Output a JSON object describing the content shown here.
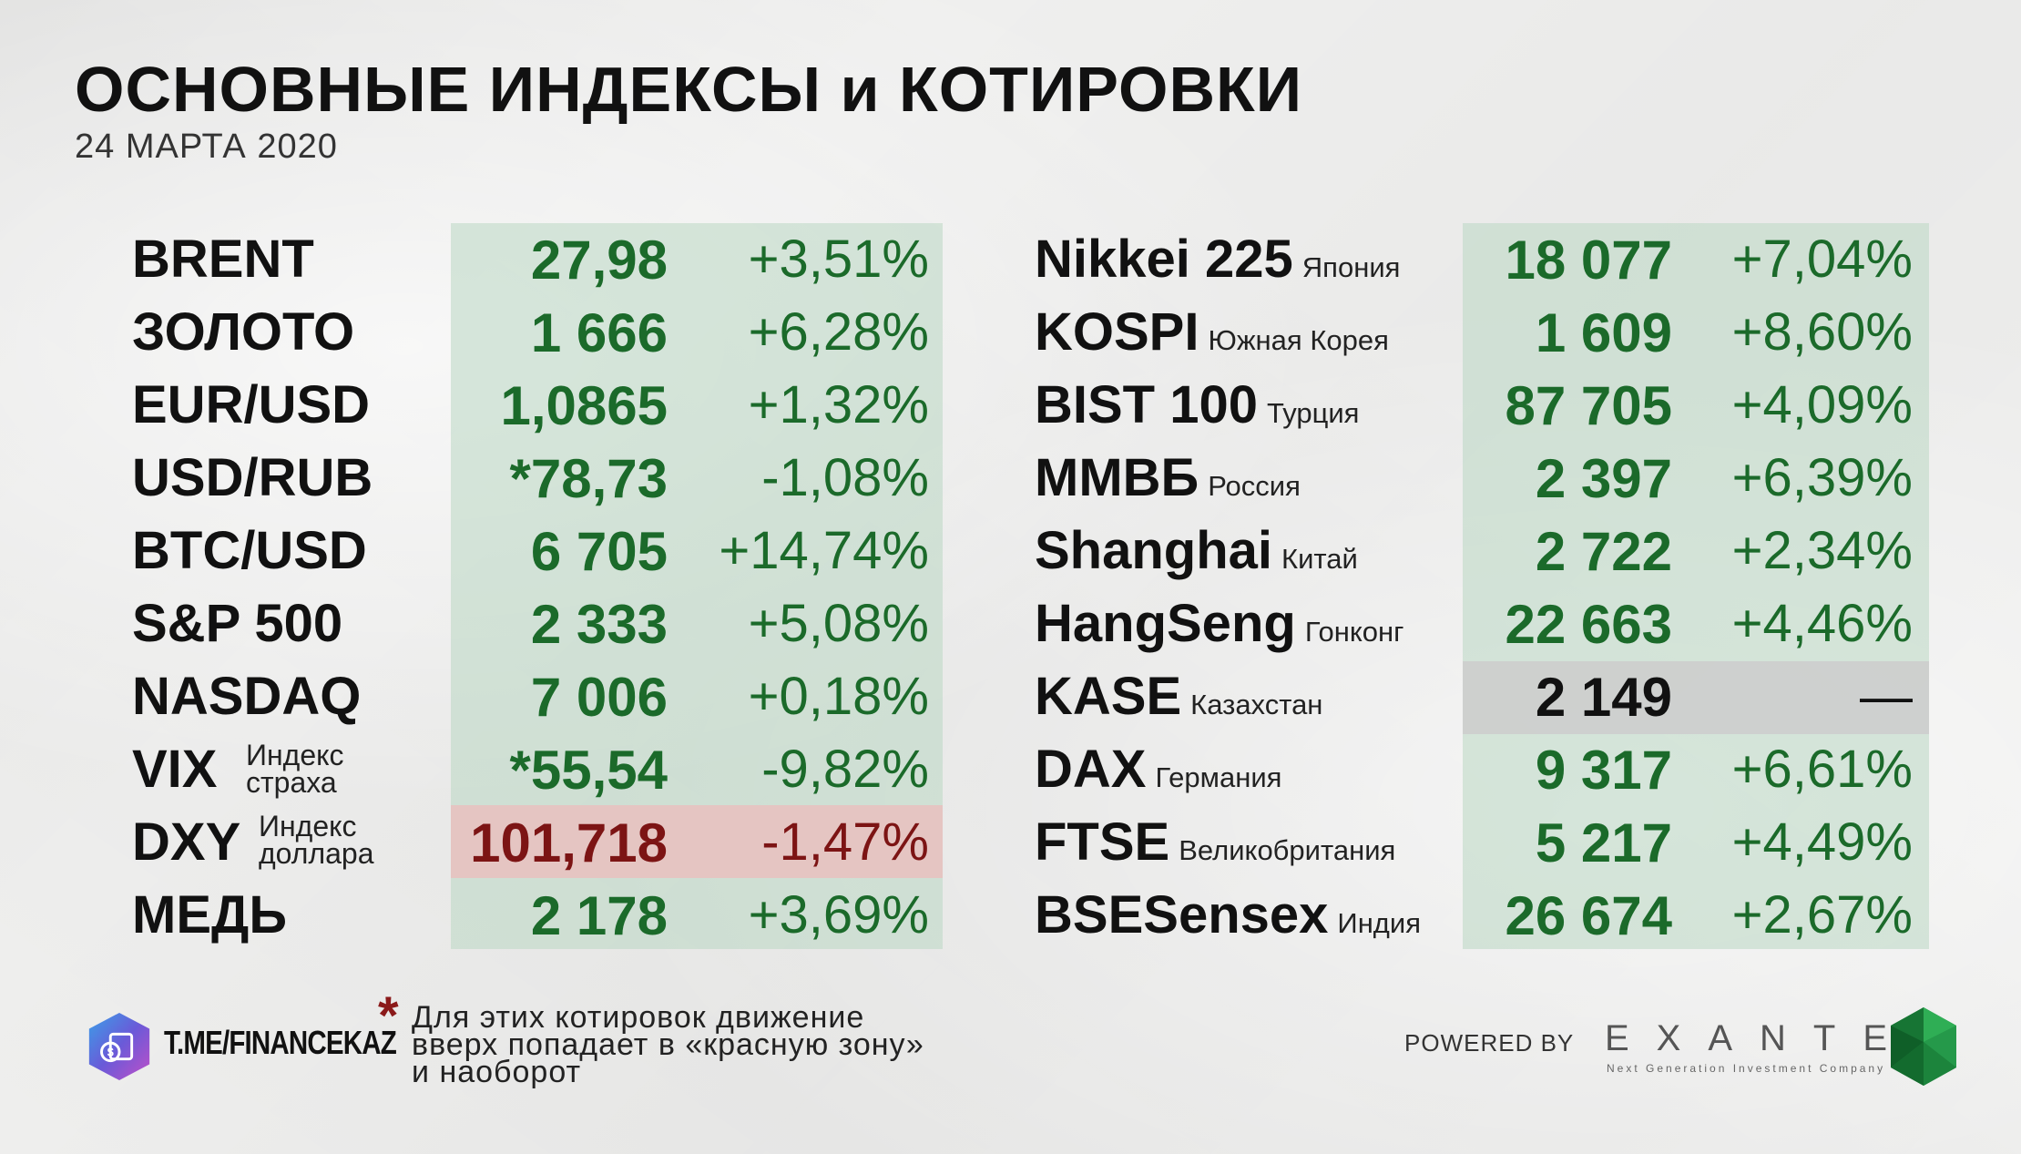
{
  "header": {
    "title": "ОСНОВНЫЕ ИНДЕКСЫ и КОТИРОВКИ",
    "date": "24 МАРТА 2020"
  },
  "left_table": [
    {
      "name": "BRENT",
      "value": "27,98",
      "change": "+3,51%"
    },
    {
      "name": "ЗОЛОТО",
      "value": "1 666",
      "change": "+6,28%"
    },
    {
      "name": "EUR/USD",
      "value": "1,0865",
      "change": "+1,32%"
    },
    {
      "name": "USD/RUB",
      "value": "*78,73",
      "change": "-1,08%"
    },
    {
      "name": "BTC/USD",
      "value": "6 705",
      "change": "+14,74%"
    },
    {
      "name": "S&P 500",
      "value": "2 333",
      "change": "+5,08%"
    },
    {
      "name": "NASDAQ",
      "value": "7 006",
      "change": "+0,18%"
    },
    {
      "name": "VIX",
      "sub_line1": "Индекс",
      "sub_line2": "страха",
      "value": "*55,54",
      "change": "-9,82%"
    },
    {
      "name": "DXY",
      "sub_line1": "Индекс",
      "sub_line2": "доллара",
      "value": "101,718",
      "change": "-1,47%",
      "status": "negative"
    },
    {
      "name": "МЕДЬ",
      "value": "2 178",
      "change": "+3,69%"
    }
  ],
  "right_table": [
    {
      "name": "Nikkei 225",
      "sub": "Япония",
      "value": "18 077",
      "change": "+7,04%"
    },
    {
      "name": "KOSPI",
      "sub": "Южная Корея",
      "value": "1 609",
      "change": "+8,60%"
    },
    {
      "name": "BIST 100",
      "sub": "Турция",
      "value": "87 705",
      "change": "+4,09%"
    },
    {
      "name": "ММВБ",
      "sub": "Россия",
      "value": "2 397",
      "change": "+6,39%"
    },
    {
      "name": "Shanghai",
      "sub": "Китай",
      "value": "2 722",
      "change": "+2,34%"
    },
    {
      "name": "HangSeng",
      "sub": "Гонконг",
      "value": "22 663",
      "change": "+4,46%"
    },
    {
      "name": "KASE",
      "sub": "Казахстан",
      "value": "2 149",
      "change": "—",
      "status": "neutral"
    },
    {
      "name": "DAX",
      "sub": "Германия",
      "value": "9 317",
      "change": "+6,61%"
    },
    {
      "name": "FTSE",
      "sub": "Великобритания",
      "value": "5 217",
      "change": "+4,49%"
    },
    {
      "name": "BSESensex",
      "sub": "Индия",
      "value": "26 674",
      "change": "+2,67%"
    }
  ],
  "footer": {
    "channel": "T.ME/FINANCEKAZ",
    "asterisk": "*",
    "note_line1": "Для этих котировок движение",
    "note_line2": "вверх попадает в «красную зону»",
    "note_line3": "и наоборот",
    "powered_by": "POWERED BY",
    "brand": "EXANTE",
    "brand_tagline": "Next Generation Investment Company"
  },
  "colors": {
    "positive": "#1b6a2a",
    "negative": "#7c1414",
    "panel": "#bad7c2",
    "highlight_red": "#ecbcbc",
    "highlight_gray": "#cdcdcd"
  }
}
